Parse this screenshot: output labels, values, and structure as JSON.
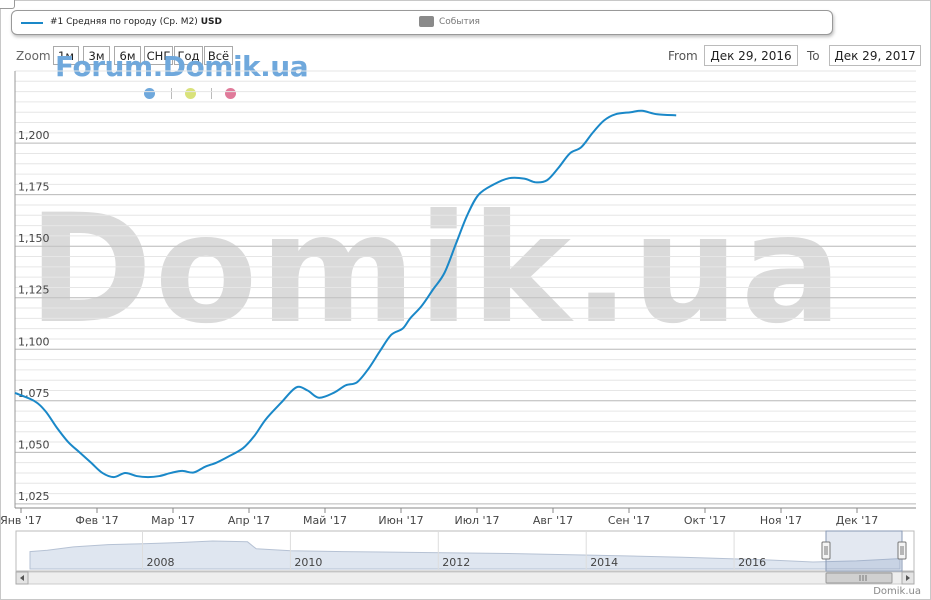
{
  "legend": {
    "series_label": "#1 Средняя по городу (Ср. M2)",
    "series_unit": "USD",
    "events_label": "События"
  },
  "toolbar": {
    "zoom_label": "Zoom",
    "buttons": [
      "1м",
      "3м",
      "6м",
      "СНГ",
      "Год",
      "Всё"
    ],
    "from_label": "From",
    "from_value": "Дек 29, 2016",
    "to_label": "To",
    "to_value": "Дек 29, 2017"
  },
  "watermarks": {
    "forum": "Forum.Domik.ua",
    "big": "Domik.ua"
  },
  "dots": [
    {
      "name": "blue-dot",
      "color": "#6fa8dc"
    },
    {
      "name": "yellow-dot",
      "color": "#d9e27a"
    },
    {
      "name": "pink-dot",
      "color": "#e07a9a"
    }
  ],
  "brand": "Domik.ua",
  "colors": {
    "series": "#1a88c8",
    "grid": "#d8d8d8",
    "navigator_fill": "#dfe6f0"
  },
  "chart_data": {
    "type": "line",
    "series": [
      {
        "name": "#1 Средняя по городу (Ср. M2)",
        "points": [
          [
            0.0,
            1.0788
          ],
          [
            0.25,
            1.075
          ],
          [
            0.4,
            1.07
          ],
          [
            0.55,
            1.062
          ],
          [
            0.7,
            1.055
          ],
          [
            0.85,
            1.05
          ],
          [
            1.0,
            1.045
          ],
          [
            1.15,
            1.04
          ],
          [
            1.3,
            1.038
          ],
          [
            1.45,
            1.04
          ],
          [
            1.6,
            1.0385
          ],
          [
            1.75,
            1.038
          ],
          [
            1.9,
            1.0385
          ],
          [
            2.05,
            1.04
          ],
          [
            2.2,
            1.041
          ],
          [
            2.35,
            1.0402
          ],
          [
            2.5,
            1.043
          ],
          [
            2.65,
            1.045
          ],
          [
            2.8,
            1.0478
          ],
          [
            3.0,
            1.052
          ],
          [
            3.15,
            1.058
          ],
          [
            3.3,
            1.066
          ],
          [
            3.5,
            1.074
          ],
          [
            3.7,
            1.0815
          ],
          [
            3.85,
            1.08
          ],
          [
            4.0,
            1.0765
          ],
          [
            4.2,
            1.079
          ],
          [
            4.35,
            1.0825
          ],
          [
            4.5,
            1.084
          ],
          [
            4.65,
            1.0905
          ],
          [
            4.8,
            1.099
          ],
          [
            4.95,
            1.107
          ],
          [
            5.1,
            1.11
          ],
          [
            5.2,
            1.115
          ],
          [
            5.35,
            1.121
          ],
          [
            5.5,
            1.129
          ],
          [
            5.65,
            1.137
          ],
          [
            5.8,
            1.151
          ],
          [
            5.95,
            1.165
          ],
          [
            6.1,
            1.175
          ],
          [
            6.3,
            1.18
          ],
          [
            6.5,
            1.183
          ],
          [
            6.7,
            1.1828
          ],
          [
            6.85,
            1.181
          ],
          [
            7.0,
            1.182
          ],
          [
            7.15,
            1.188
          ],
          [
            7.3,
            1.195
          ],
          [
            7.45,
            1.198
          ],
          [
            7.6,
            1.205
          ],
          [
            7.75,
            1.211
          ],
          [
            7.9,
            1.214
          ],
          [
            8.1,
            1.215
          ],
          [
            8.25,
            1.2157
          ],
          [
            8.45,
            1.214
          ],
          [
            8.7,
            1.2135
          ]
        ]
      }
    ],
    "x_tick_labels": [
      "Янв '17",
      "Фев '17",
      "Мар '17",
      "Апр '17",
      "Май '17",
      "Июн '17",
      "Июл '17",
      "Авг '17",
      "Сен '17",
      "Окт '17",
      "Ноя '17",
      "Дек '17"
    ],
    "y_tick_labels": [
      "1,025",
      "1,050",
      "1,075",
      "1,100",
      "1,125",
      "1,150",
      "1,175",
      "1,200"
    ],
    "y_ticks": [
      1.025,
      1.05,
      1.075,
      1.1,
      1.125,
      1.15,
      1.175,
      1.2
    ],
    "ylim": [
      1.023,
      1.235
    ],
    "grid": true,
    "navigator": {
      "year_labels": [
        "2008",
        "2010",
        "2012",
        "2014",
        "2016"
      ],
      "profile": [
        [
          0.0,
          0.55
        ],
        [
          0.02,
          0.6
        ],
        [
          0.05,
          0.72
        ],
        [
          0.09,
          0.8
        ],
        [
          0.13,
          0.83
        ],
        [
          0.17,
          0.87
        ],
        [
          0.21,
          0.93
        ],
        [
          0.25,
          0.9
        ],
        [
          0.26,
          0.65
        ],
        [
          0.3,
          0.58
        ],
        [
          0.36,
          0.55
        ],
        [
          0.45,
          0.52
        ],
        [
          0.55,
          0.48
        ],
        [
          0.65,
          0.42
        ],
        [
          0.75,
          0.35
        ],
        [
          0.85,
          0.25
        ],
        [
          0.9,
          0.18
        ],
        [
          0.95,
          0.22
        ],
        [
          1.0,
          0.3
        ]
      ]
    }
  }
}
